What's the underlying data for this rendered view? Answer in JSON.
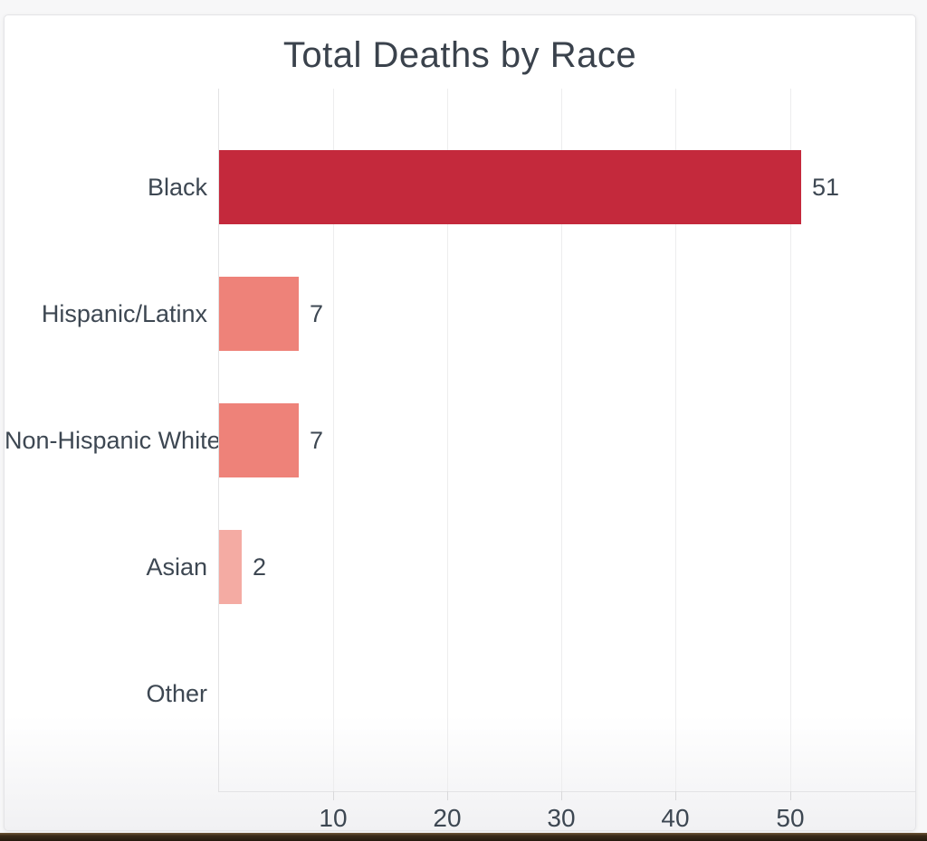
{
  "page": {
    "background_color": "#f7f7f8",
    "card_color": "#ffffff",
    "bottom_strip_color": "#241a0e"
  },
  "chart_data": {
    "type": "bar",
    "orientation": "horizontal",
    "title": "Total Deaths by Race",
    "categories": [
      "Black",
      "Hispanic/Latinx",
      "Non-Hispanic White",
      "Asian",
      "Other"
    ],
    "values": [
      51,
      7,
      7,
      2,
      0
    ],
    "value_labels": [
      "51",
      "7",
      "7",
      "2",
      ""
    ],
    "bar_colors": [
      "#c4293c",
      "#ee8279",
      "#ee8279",
      "#f4aba3",
      null
    ],
    "xlabel": "",
    "ylabel": "",
    "x_ticks": [
      10,
      20,
      30,
      40,
      50
    ],
    "xlim": [
      0,
      61
    ],
    "grid": true,
    "legend": "none",
    "title_color": "#3a424c",
    "label_color": "#3d4752",
    "grid_color": "#ededee",
    "axis_line_color": "#e2e2e4",
    "tick_mark_color": "#d9d9db"
  }
}
